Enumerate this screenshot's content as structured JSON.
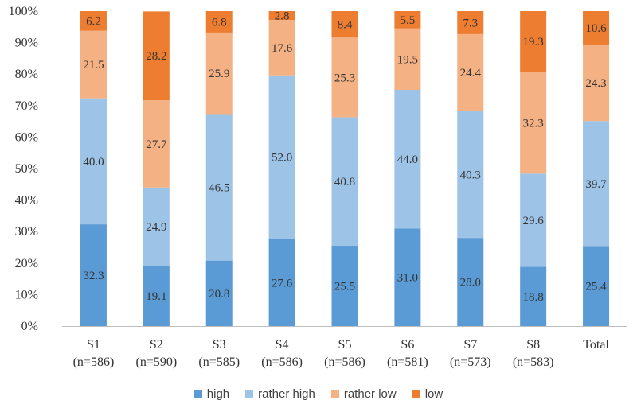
{
  "chart_data": {
    "type": "bar",
    "stacked": true,
    "title": "",
    "xlabel": "",
    "ylabel": "",
    "ylim": [
      0,
      100
    ],
    "yticks": [
      "0%",
      "10%",
      "20%",
      "30%",
      "40%",
      "50%",
      "60%",
      "70%",
      "80%",
      "90%",
      "100%"
    ],
    "categories": [
      {
        "name": "S1",
        "n": "(n=586)"
      },
      {
        "name": "S2",
        "n": "(n=590)"
      },
      {
        "name": "S3",
        "n": "(n=585)"
      },
      {
        "name": "S4",
        "n": "(n=586)"
      },
      {
        "name": "S5",
        "n": "(n=586)"
      },
      {
        "name": "S6",
        "n": "(n=581)"
      },
      {
        "name": "S7",
        "n": "(n=573)"
      },
      {
        "name": "S8",
        "n": "(n=583)"
      },
      {
        "name": "Total",
        "n": ""
      }
    ],
    "series": [
      {
        "name": "high",
        "color": "#5B9BD5",
        "values": [
          32.3,
          19.1,
          20.8,
          27.6,
          25.5,
          31.0,
          28.0,
          18.8,
          25.4
        ],
        "labels": [
          "32.3",
          "19.1",
          "20.8",
          "27.6",
          "25.5",
          "31.0",
          "28.0",
          "18.8",
          "25.4"
        ]
      },
      {
        "name": "rather high",
        "color": "#9DC3E6",
        "values": [
          40.0,
          24.9,
          46.5,
          52.0,
          40.8,
          44.0,
          40.3,
          29.6,
          39.7
        ],
        "labels": [
          "40.0",
          "24.9",
          "46.5",
          "52.0",
          "40.8",
          "44.0",
          "40.3",
          "29.6",
          "39.7"
        ]
      },
      {
        "name": "rather low",
        "color": "#F4B183",
        "values": [
          21.5,
          27.7,
          25.9,
          17.6,
          25.3,
          19.5,
          24.4,
          32.3,
          24.3
        ],
        "labels": [
          "21.5",
          "27.7",
          "25.9",
          "17.6",
          "25.3",
          "19.5",
          "24.4",
          "32.3",
          "24.3"
        ]
      },
      {
        "name": "low",
        "color": "#ED7D31",
        "values": [
          6.2,
          28.2,
          6.8,
          2.8,
          8.4,
          5.5,
          7.3,
          19.3,
          10.6
        ],
        "labels": [
          "6.2",
          "28.2",
          "6.8",
          "2.8",
          "8.4",
          "5.5",
          "7.3",
          "19.3",
          "10.6"
        ]
      }
    ],
    "legend_position": "bottom-center",
    "grid": false
  }
}
